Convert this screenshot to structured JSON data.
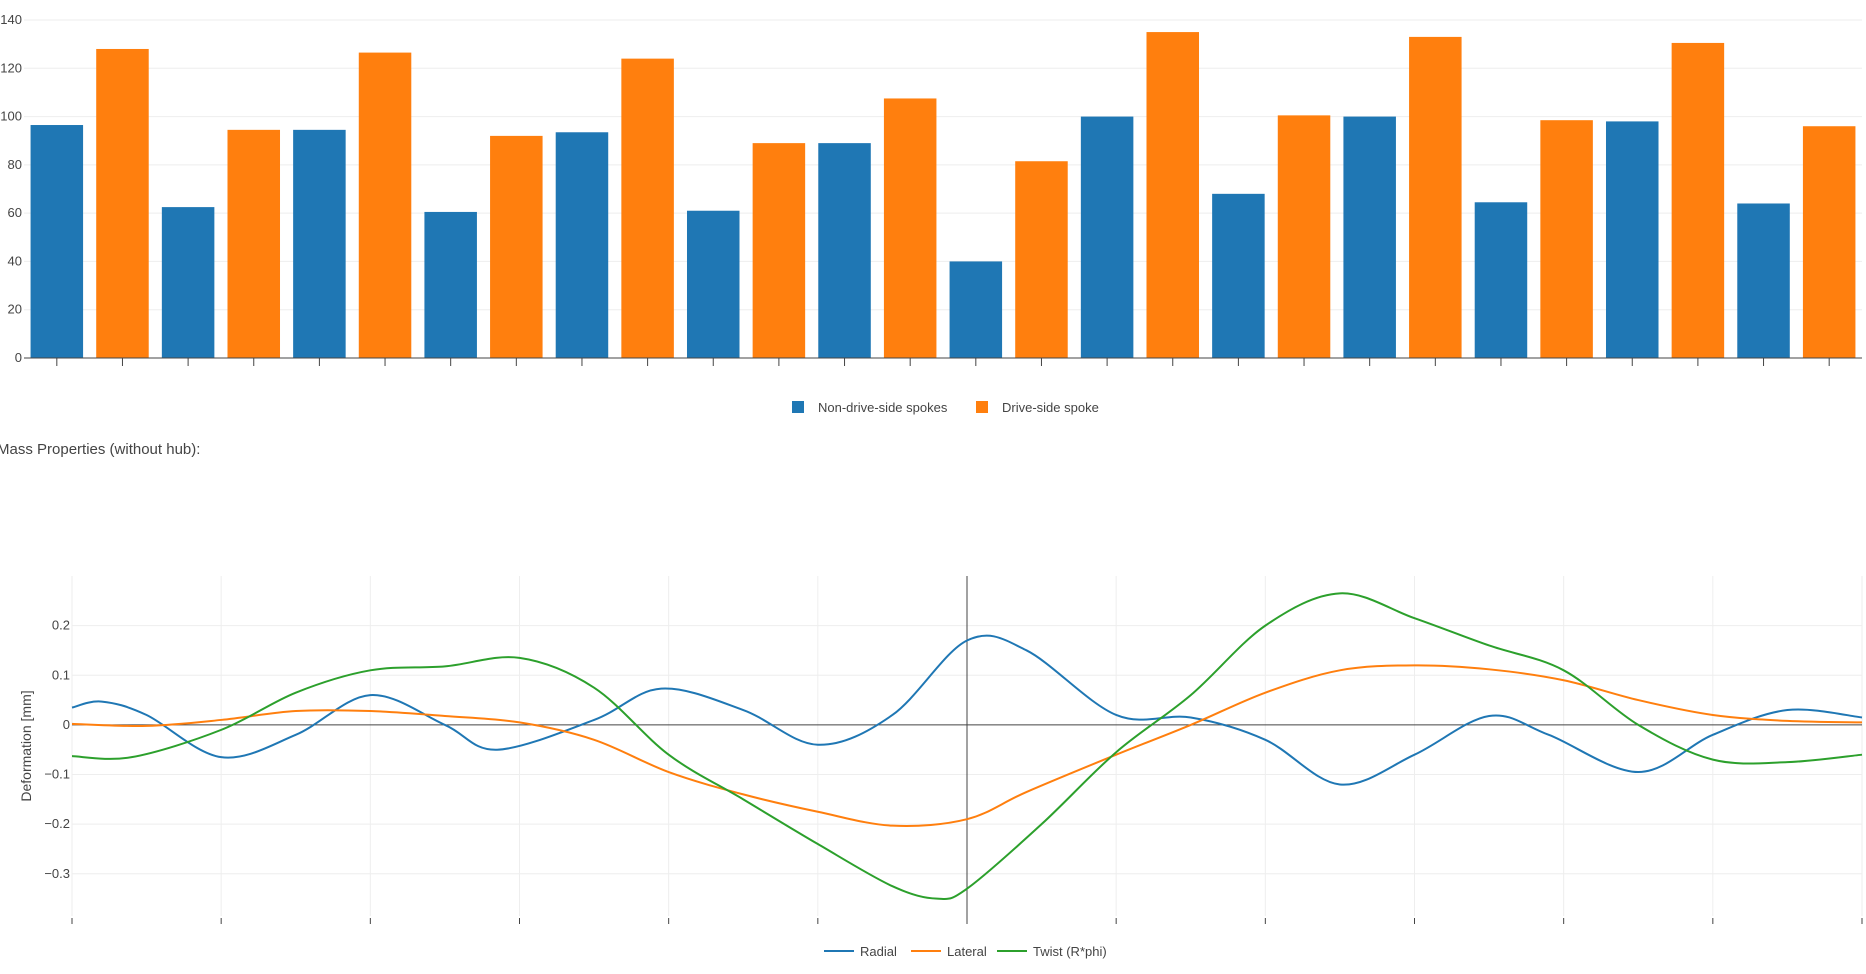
{
  "section_heading": "Mass Properties (without hub):",
  "colors": {
    "blue": "#1f77b4",
    "orange": "#ff7f0e",
    "green": "#2ca02c",
    "grid": "#eeeeee",
    "axis": "#444444"
  },
  "chart_data": [
    {
      "type": "bar",
      "title": "",
      "xlabel": "",
      "ylabel": "",
      "ylim": [
        0,
        140
      ],
      "yticks": [
        0,
        20,
        40,
        60,
        80,
        100,
        120,
        140
      ],
      "grid": true,
      "legend_position": "bottom-center",
      "series": [
        {
          "name": "Non-drive-side spokes",
          "color": "#1f77b4"
        },
        {
          "name": "Drive-side spoke",
          "color": "#ff7f0e"
        }
      ],
      "bars": [
        {
          "series": 0,
          "value": 96.5
        },
        {
          "series": 1,
          "value": 128
        },
        {
          "series": 0,
          "value": 62.5
        },
        {
          "series": 1,
          "value": 94.5
        },
        {
          "series": 0,
          "value": 94.5
        },
        {
          "series": 1,
          "value": 126.5
        },
        {
          "series": 0,
          "value": 60.5
        },
        {
          "series": 1,
          "value": 92
        },
        {
          "series": 0,
          "value": 93.5
        },
        {
          "series": 1,
          "value": 124
        },
        {
          "series": 0,
          "value": 61
        },
        {
          "series": 1,
          "value": 89
        },
        {
          "series": 0,
          "value": 89
        },
        {
          "series": 1,
          "value": 107.5
        },
        {
          "series": 0,
          "value": 40
        },
        {
          "series": 1,
          "value": 81.5
        },
        {
          "series": 0,
          "value": 100
        },
        {
          "series": 1,
          "value": 135
        },
        {
          "series": 0,
          "value": 68
        },
        {
          "series": 1,
          "value": 100.5
        },
        {
          "series": 0,
          "value": 100
        },
        {
          "series": 1,
          "value": 133
        },
        {
          "series": 0,
          "value": 64.5
        },
        {
          "series": 1,
          "value": 98.5
        },
        {
          "series": 0,
          "value": 98
        },
        {
          "series": 1,
          "value": 130.5
        },
        {
          "series": 0,
          "value": 64
        },
        {
          "series": 1,
          "value": 96
        }
      ]
    },
    {
      "type": "line",
      "title": "",
      "xlabel": "",
      "ylabel": "Deformation [mm]",
      "xlim": [
        0,
        12
      ],
      "ylim": [
        -0.385,
        0.3
      ],
      "yticks": [
        -0.3,
        -0.2,
        -0.1,
        0,
        0.1,
        0.2
      ],
      "ytick_labels": [
        "−0.3",
        "−0.2",
        "−0.1",
        "0",
        "0.1",
        "0.2"
      ],
      "grid": true,
      "zero_line": true,
      "legend_position": "bottom-center",
      "series": [
        {
          "name": "Radial",
          "color": "#1f77b4",
          "x": [
            0,
            0.2,
            0.5,
            1.0,
            1.5,
            2.0,
            2.5,
            2.85,
            3.5,
            3.95,
            4.5,
            5.0,
            5.5,
            6.0,
            6.4,
            7.0,
            7.5,
            8.0,
            8.5,
            9.0,
            9.5,
            9.9,
            10.5,
            11.0,
            11.5,
            12.0
          ],
          "y": [
            0.035,
            0.047,
            0.02,
            -0.065,
            -0.02,
            0.06,
            0.0,
            -0.05,
            0.01,
            0.073,
            0.03,
            -0.04,
            0.02,
            0.17,
            0.15,
            0.02,
            0.015,
            -0.03,
            -0.12,
            -0.06,
            0.018,
            -0.02,
            -0.095,
            -0.02,
            0.03,
            0.015
          ]
        },
        {
          "name": "Lateral",
          "color": "#ff7f0e",
          "x": [
            0,
            0.5,
            1.0,
            1.5,
            2.0,
            2.5,
            3.0,
            3.5,
            4.0,
            4.5,
            5.0,
            5.5,
            6.0,
            6.4,
            7.0,
            7.5,
            8.0,
            8.5,
            9.0,
            9.5,
            10.0,
            10.5,
            11.0,
            11.5,
            12.0
          ],
          "y": [
            0.002,
            -0.002,
            0.01,
            0.028,
            0.028,
            0.018,
            0.005,
            -0.03,
            -0.095,
            -0.14,
            -0.175,
            -0.203,
            -0.19,
            -0.135,
            -0.06,
            0.0,
            0.065,
            0.11,
            0.12,
            0.112,
            0.09,
            0.05,
            0.02,
            0.008,
            0.005
          ]
        },
        {
          "name": "Twist (R*phi)",
          "color": "#2ca02c",
          "x": [
            0,
            0.4,
            1.0,
            1.5,
            2.0,
            2.5,
            3.0,
            3.5,
            4.0,
            4.5,
            5.0,
            5.5,
            5.8,
            6.0,
            6.5,
            7.0,
            7.5,
            8.0,
            8.5,
            9.0,
            9.5,
            10.0,
            10.5,
            11.0,
            11.5,
            12.0
          ],
          "y": [
            -0.063,
            -0.065,
            -0.01,
            0.065,
            0.11,
            0.118,
            0.135,
            0.075,
            -0.06,
            -0.15,
            -0.24,
            -0.325,
            -0.35,
            -0.33,
            -0.2,
            -0.055,
            0.06,
            0.2,
            0.265,
            0.215,
            0.16,
            0.11,
            0.0,
            -0.07,
            -0.075,
            -0.06
          ]
        }
      ]
    }
  ]
}
